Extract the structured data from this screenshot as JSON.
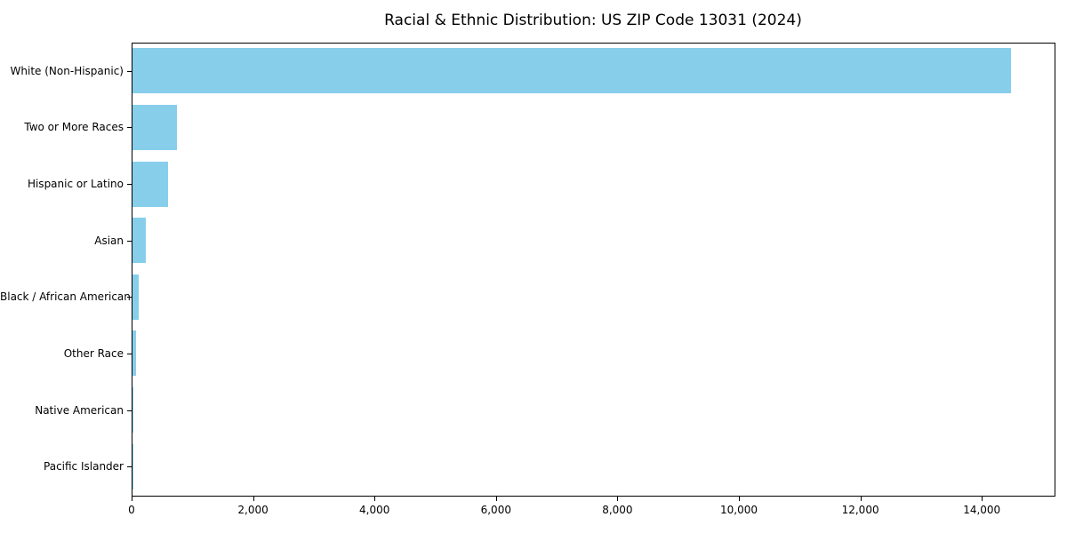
{
  "chart_data": {
    "type": "bar",
    "orientation": "horizontal",
    "title": "Racial & Ethnic Distribution: US ZIP Code 13031 (2024)",
    "categories": [
      "White (Non-Hispanic)",
      "Two or More Races",
      "Hispanic or Latino",
      "Asian",
      "Black / African American",
      "Other Race",
      "Native American",
      "Pacific Islander"
    ],
    "values": [
      14460,
      730,
      585,
      220,
      100,
      55,
      15,
      5
    ],
    "xlabel": "",
    "ylabel": "",
    "xlim": [
      0,
      15183
    ],
    "x_ticks": [
      0,
      2000,
      4000,
      6000,
      8000,
      10000,
      12000,
      14000
    ],
    "x_tick_labels": [
      "0",
      "2,000",
      "4,000",
      "6,000",
      "8,000",
      "10,000",
      "12,000",
      "14,000"
    ],
    "bar_color": "#87CEEB",
    "axis_color": "#000000",
    "grid": false,
    "legend_position": "none",
    "bar_fraction_of_row": 0.8
  }
}
